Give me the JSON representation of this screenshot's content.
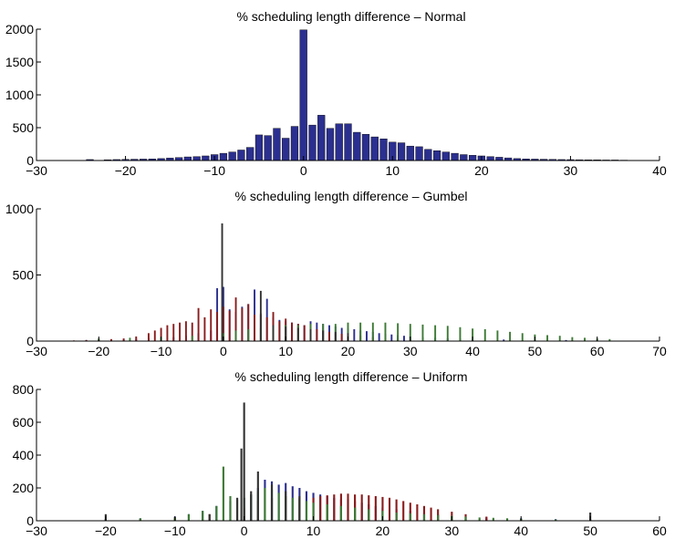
{
  "chart_data": [
    {
      "type": "bar",
      "title": "% scheduling length difference –  Normal",
      "xlim": [
        -30,
        40
      ],
      "ylim": [
        0,
        2000
      ],
      "xticks": [
        "−30",
        "−20",
        "−10",
        "0",
        "10",
        "20",
        "30",
        "40"
      ],
      "yticks": [
        "0",
        "500",
        "1000",
        "1500",
        "2000"
      ],
      "bar_width": 0.8,
      "series": [
        {
          "color": "#2b2f8f",
          "x": [
            -24,
            -22,
            -21,
            -20,
            -19,
            -18,
            -17,
            -16,
            -15,
            -14,
            -13,
            -12,
            -11,
            -10,
            -9,
            -8,
            -7,
            -6,
            -5,
            -4,
            -3,
            -2,
            -1,
            0,
            1,
            2,
            3,
            4,
            5,
            6,
            7,
            8,
            9,
            10,
            11,
            12,
            13,
            14,
            15,
            16,
            17,
            18,
            19,
            20,
            21,
            22,
            23,
            24,
            25,
            26,
            27,
            28,
            29,
            30,
            31,
            32,
            33,
            34,
            35,
            36
          ],
          "values": [
            15,
            12,
            15,
            18,
            20,
            22,
            25,
            30,
            38,
            45,
            55,
            60,
            70,
            90,
            110,
            130,
            160,
            200,
            390,
            380,
            490,
            340,
            520,
            1990,
            540,
            690,
            490,
            560,
            560,
            430,
            400,
            360,
            330,
            280,
            270,
            220,
            210,
            170,
            150,
            130,
            110,
            90,
            80,
            70,
            60,
            50,
            40,
            30,
            25,
            22,
            20,
            18,
            15,
            14,
            12,
            10,
            10,
            8,
            8,
            6
          ]
        }
      ]
    },
    {
      "type": "bar",
      "title": "% scheduling length difference – Gumbel",
      "xlim": [
        -30,
        70
      ],
      "ylim": [
        0,
        1000
      ],
      "xticks": [
        "−30",
        "−20",
        "−10",
        "0",
        "10",
        "20",
        "30",
        "40",
        "50",
        "60",
        "70"
      ],
      "yticks": [
        "0",
        "500",
        "1000"
      ],
      "bar_width": 0.28,
      "series": [
        {
          "color": "#2b2f8f",
          "x": [
            -22,
            -20,
            -18,
            -16,
            -14,
            -12,
            -10,
            -8,
            -6,
            -4,
            -2,
            -1,
            0,
            1,
            2,
            3,
            4,
            5,
            6,
            7,
            8,
            9,
            10,
            11,
            12,
            13,
            14,
            15,
            16,
            17,
            18,
            19,
            20,
            21,
            22,
            23,
            24,
            25,
            26,
            27,
            28,
            29,
            30,
            32,
            34,
            36,
            38,
            40,
            45,
            50,
            55,
            60
          ],
          "values": [
            8,
            10,
            12,
            15,
            18,
            22,
            25,
            30,
            40,
            60,
            80,
            400,
            410,
            240,
            220,
            260,
            280,
            390,
            200,
            320,
            180,
            160,
            150,
            140,
            130,
            120,
            150,
            140,
            130,
            120,
            110,
            100,
            95,
            90,
            80,
            75,
            70,
            60,
            55,
            50,
            45,
            40,
            35,
            30,
            25,
            20,
            18,
            15,
            12,
            10,
            8,
            6
          ]
        },
        {
          "color": "#8a1c1c",
          "x": [
            -24,
            -22,
            -20,
            -18,
            -16,
            -14,
            -12,
            -11,
            -10,
            -9,
            -8,
            -7,
            -6,
            -5,
            -4,
            -3,
            -2,
            -1,
            0,
            1,
            2,
            3,
            4,
            5,
            6,
            7,
            8,
            9,
            10,
            11,
            12,
            13,
            14,
            15,
            16,
            17,
            18,
            19,
            20,
            22,
            24,
            26,
            28,
            30
          ],
          "values": [
            5,
            8,
            10,
            15,
            20,
            35,
            60,
            80,
            100,
            120,
            130,
            140,
            150,
            140,
            250,
            180,
            240,
            220,
            260,
            230,
            330,
            250,
            280,
            200,
            210,
            180,
            220,
            150,
            170,
            140,
            130,
            120,
            100,
            90,
            80,
            70,
            60,
            55,
            50,
            40,
            30,
            20,
            15,
            10
          ]
        },
        {
          "color": "#3d7a35",
          "x": [
            -20,
            -15,
            -10,
            -5,
            0,
            2,
            4,
            6,
            8,
            10,
            12,
            14,
            16,
            18,
            20,
            22,
            24,
            26,
            28,
            30,
            32,
            34,
            36,
            38,
            40,
            42,
            44,
            46,
            48,
            50,
            52,
            54,
            56,
            58,
            60,
            62
          ],
          "values": [
            20,
            25,
            30,
            40,
            60,
            80,
            90,
            100,
            110,
            120,
            120,
            130,
            130,
            130,
            140,
            140,
            140,
            140,
            135,
            130,
            125,
            120,
            115,
            105,
            95,
            90,
            80,
            70,
            60,
            50,
            45,
            40,
            30,
            25,
            20,
            15
          ]
        },
        {
          "color": "#333333",
          "x": [
            -0.2,
            6,
            8,
            10,
            12,
            14,
            16,
            18,
            20
          ],
          "values": [
            890,
            380,
            120,
            110,
            100,
            90,
            80,
            70,
            60
          ]
        }
      ]
    },
    {
      "type": "bar",
      "title": "% scheduling length difference –  Uniform",
      "xlim": [
        -30,
        60
      ],
      "ylim": [
        0,
        800
      ],
      "xticks": [
        "−30",
        "−20",
        "−10",
        "0",
        "10",
        "20",
        "30",
        "40",
        "50",
        "60"
      ],
      "yticks": [
        "0",
        "200",
        "400",
        "600",
        "800"
      ],
      "bar_width": 0.28,
      "series": [
        {
          "color": "#2b2f8f",
          "x": [
            -20,
            -15,
            -10,
            -8,
            -6,
            -4,
            -2,
            0,
            1,
            2,
            3,
            4,
            5,
            6,
            7,
            8,
            9,
            10,
            11,
            12,
            13,
            14,
            15,
            16,
            17,
            18,
            19,
            20,
            22,
            24,
            26,
            28,
            30,
            32,
            35,
            40,
            45,
            50
          ],
          "values": [
            10,
            15,
            25,
            40,
            60,
            90,
            120,
            140,
            160,
            200,
            250,
            240,
            220,
            230,
            210,
            200,
            180,
            170,
            160,
            150,
            140,
            130,
            130,
            120,
            110,
            100,
            90,
            80,
            70,
            60,
            50,
            40,
            30,
            25,
            20,
            15,
            10,
            8
          ]
        },
        {
          "color": "#8a1c1c",
          "x": [
            -15,
            -10,
            -5,
            0,
            2,
            4,
            6,
            8,
            10,
            11,
            12,
            13,
            14,
            15,
            16,
            17,
            18,
            19,
            20,
            21,
            22,
            23,
            24,
            25,
            26,
            27,
            28,
            30,
            32,
            35,
            40
          ],
          "values": [
            10,
            20,
            40,
            80,
            120,
            140,
            150,
            140,
            140,
            150,
            155,
            160,
            165,
            165,
            160,
            160,
            155,
            150,
            145,
            140,
            130,
            120,
            110,
            100,
            90,
            80,
            70,
            55,
            40,
            25,
            10
          ]
        },
        {
          "color": "#3d7a35",
          "x": [
            -20,
            -15,
            -10,
            -8,
            -6,
            -4,
            -3,
            -2,
            -1,
            0,
            1,
            2,
            3,
            4,
            5,
            6,
            7,
            8,
            9,
            10,
            12,
            14,
            16,
            18,
            20,
            22,
            24,
            26,
            28,
            30,
            32,
            34,
            36,
            38,
            40,
            45,
            50
          ],
          "values": [
            10,
            15,
            20,
            40,
            60,
            90,
            330,
            150,
            130,
            140,
            160,
            180,
            200,
            190,
            170,
            150,
            140,
            130,
            120,
            110,
            100,
            90,
            80,
            70,
            60,
            50,
            45,
            40,
            35,
            30,
            25,
            20,
            18,
            15,
            12,
            8,
            5
          ]
        },
        {
          "color": "#333333",
          "x": [
            -20,
            -5,
            -1,
            -0.4,
            0,
            1,
            2,
            4,
            6,
            8,
            50
          ],
          "values": [
            40,
            40,
            140,
            440,
            720,
            180,
            300,
            220,
            180,
            150,
            50
          ]
        }
      ]
    }
  ]
}
